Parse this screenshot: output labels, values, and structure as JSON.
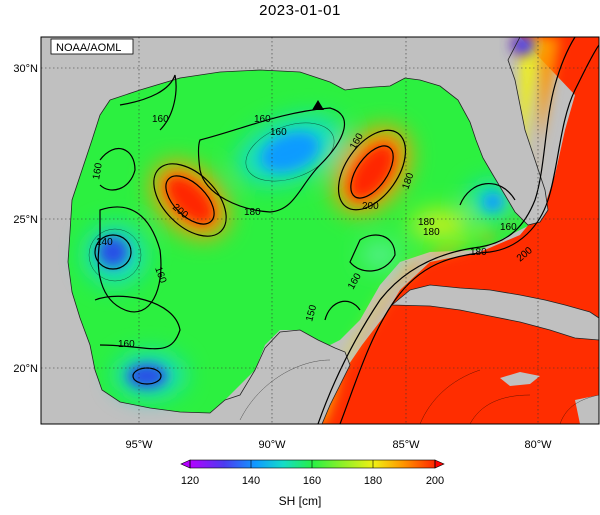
{
  "title": "2023-01-01",
  "credit": "NOAA/AOML",
  "lat_labels": [
    "30°N",
    "25°N",
    "20°N"
  ],
  "lon_labels": [
    "95°W",
    "90°W",
    "85°W",
    "80°W"
  ],
  "contour_labels": [
    "160",
    "160",
    "160",
    "160",
    "180",
    "200",
    "180",
    "160",
    "140",
    "160",
    "160",
    "180",
    "200",
    "180",
    "160",
    "160",
    "180",
    "200",
    "150"
  ],
  "colorbar": {
    "title": "SH [cm]",
    "tick_labels": [
      "120",
      "140",
      "160",
      "180",
      "200"
    ],
    "colors": [
      "#b400ff",
      "#4b3cf0",
      "#0f9bff",
      "#14dcc8",
      "#28f046",
      "#8cf028",
      "#f0f014",
      "#ff9600",
      "#ff2800"
    ]
  },
  "colors": {
    "land": "#c0c0c0",
    "ocean_base": "#2cf040",
    "warm": "#ff2d00",
    "cool": "#20a0ff"
  }
}
